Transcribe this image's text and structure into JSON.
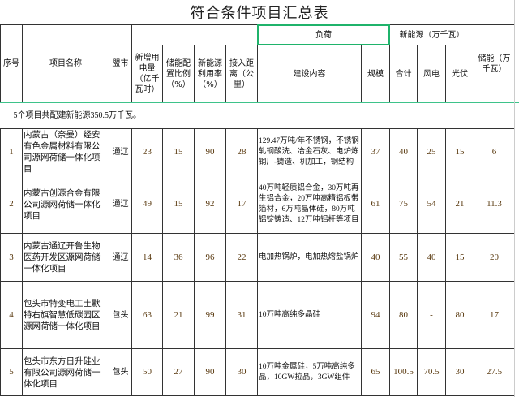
{
  "title": "符合条件项目汇总表",
  "headers": {
    "no": "序号",
    "name": "项目名称",
    "city": "盟市",
    "elec": "新增用电量（亿千瓦时）",
    "ratio": "储能配置比例（%）",
    "util": "新能源利用率（%）",
    "dist": "接入距离（公里）",
    "load": "负荷",
    "content": "建设内容",
    "scale": "规模",
    "newenergy": "新能源（万千瓦）",
    "total": "合计",
    "wind": "风电",
    "pv": "光伏",
    "storage": "储能（万千瓦）"
  },
  "note": "5个项目共配建新能源350.5万千瓦。",
  "rows": [
    {
      "no": "1",
      "name": "内蒙古（奈曼）经安有色金属材料有限公司源网荷储一体化项目",
      "city": "通辽",
      "elec": "23",
      "ratio": "15",
      "util": "90",
      "dist": "28",
      "content": "129.47万吨/年不锈钢，不锈钢轧钢酸洗、冶金石灰、电炉炼钢厂-铸造、机加工，钢结构",
      "scale": "37",
      "total": "40",
      "wind": "25",
      "pv": "15",
      "storage": "6"
    },
    {
      "no": "2",
      "name": "内蒙古创源合金有限公司源网荷储一体化项目",
      "city": "通辽",
      "elec": "49",
      "ratio": "15",
      "util": "92",
      "dist": "17",
      "content": "40万吨轻质铝合金，30万吨再生铝合金，20万吨高精铝板带箔材，6万吨晶体硅，80万吨铝锭铸造、12万吨铝杆等项目",
      "scale": "61",
      "total": "75",
      "wind": "54",
      "pv": "21",
      "storage": "11.3"
    },
    {
      "no": "3",
      "name": "内蒙古通辽开鲁生物医药开发区源网荷储一体化项目",
      "city": "通辽",
      "elec": "14",
      "ratio": "36",
      "util": "96",
      "dist": "22",
      "content": "电加热锅炉，电加热熔盐锅炉",
      "scale": "40",
      "total": "55",
      "wind": "40",
      "pv": "15",
      "storage": "20"
    },
    {
      "no": "4",
      "name": "包头市特变电工土默特右旗智慧低碳园区源网荷储一体化项目",
      "city": "包头",
      "elec": "63",
      "ratio": "21",
      "util": "99",
      "dist": "31",
      "content": "10万吨高纯多晶硅",
      "scale": "94",
      "total": "80",
      "wind": "-",
      "pv": "80",
      "storage": "17"
    },
    {
      "no": "5",
      "name": "包头市东方日升硅业有限公司源网荷储一体化项目",
      "city": "包头",
      "elec": "50",
      "ratio": "27",
      "util": "90",
      "dist": "30",
      "content": "10万吨金属硅，5万吨高纯多晶，10GW拉晶，3GW组件",
      "scale": "65",
      "total": "100.5",
      "wind": "70.5",
      "pv": "30",
      "storage": "27.5"
    }
  ]
}
